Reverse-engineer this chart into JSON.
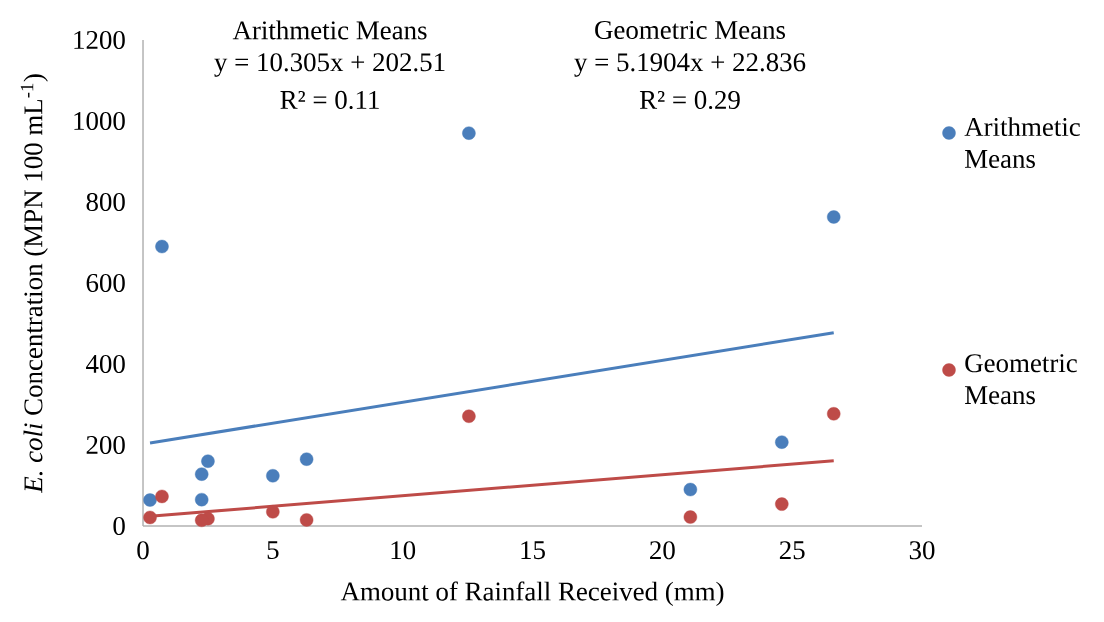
{
  "chart_data": {
    "type": "scatter",
    "xlabel": "Amount of Rainfall Received (mm)",
    "ylabel": "*E. coli* Concentration (MPN 100 mL$^{-1}$)",
    "series": [
      {
        "name": "Arithmetic Means",
        "marker": "circle",
        "color": "#4a7ebb",
        "x": [
          0.27,
          0.73,
          2.26,
          2.5,
          2.26,
          5.0,
          6.3,
          12.55,
          21.08,
          24.6,
          26.6
        ],
        "values": [
          64,
          690,
          128,
          160,
          65,
          124,
          165,
          970,
          90,
          207,
          763
        ]
      },
      {
        "name": "Geometric Means",
        "marker": "circle",
        "color": "#be4b48",
        "x": [
          0.27,
          0.73,
          2.5,
          2.26,
          5.0,
          6.3,
          12.55,
          21.08,
          24.6,
          26.6
        ],
        "values": [
          21,
          73,
          18,
          14,
          35,
          15,
          271,
          22,
          54,
          277
        ]
      },
      {
        "type": "line",
        "marker": "none",
        "color": "#4a7ebb",
        "x": [
          0.27,
          26.6
        ],
        "values": [
          205,
          477
        ]
      },
      {
        "type": "line",
        "marker": "none",
        "color": "#be4b48",
        "x": [
          0.27,
          26.6
        ],
        "values": [
          24,
          161
        ]
      }
    ],
    "xlim": [
      0,
      30
    ],
    "xticks": [
      0,
      5,
      10,
      15,
      20,
      25,
      30
    ],
    "ylim": [
      0,
      1200
    ],
    "yticks": [
      0,
      200,
      400,
      600,
      800,
      1000,
      1200
    ],
    "grid": false,
    "legend": "right",
    "annotations": [
      "Arithmetic Means",
      "y = 10.305x + 202.51",
      "R² = 0.11",
      "Geometric Means",
      "y = 5.1904x + 22.836",
      "R² = 0.29"
    ]
  }
}
